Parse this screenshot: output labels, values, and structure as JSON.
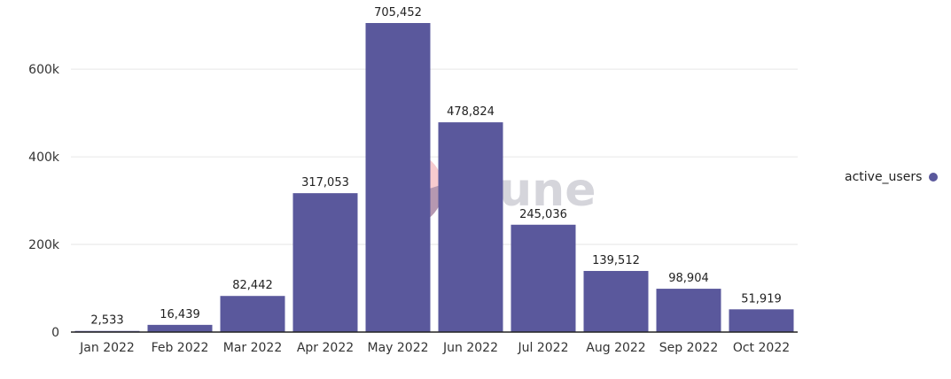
{
  "chart_data": {
    "type": "bar",
    "categories": [
      "Jan 2022",
      "Feb 2022",
      "Mar 2022",
      "Apr 2022",
      "May 2022",
      "Jun 2022",
      "Jul 2022",
      "Aug 2022",
      "Sep 2022",
      "Oct 2022"
    ],
    "series": [
      {
        "name": "active_users",
        "values": [
          2533,
          16439,
          82442,
          317053,
          705452,
          478824,
          245036,
          139512,
          98904,
          51919
        ],
        "labels": [
          "2,533",
          "16,439",
          "82,442",
          "317,053",
          "705,452",
          "478,824",
          "245,036",
          "139,512",
          "98,904",
          "51,919"
        ]
      }
    ],
    "y_ticks": [
      0,
      200000,
      400000,
      600000
    ],
    "y_tick_labels": [
      "0",
      "200k",
      "400k",
      "600k"
    ],
    "ylim": [
      0,
      705452
    ],
    "grid": true,
    "legend_position": "right",
    "bar_color": "#5a589c",
    "watermark": "Dune"
  },
  "legend": {
    "label": "active_users",
    "color": "#5a589c"
  }
}
